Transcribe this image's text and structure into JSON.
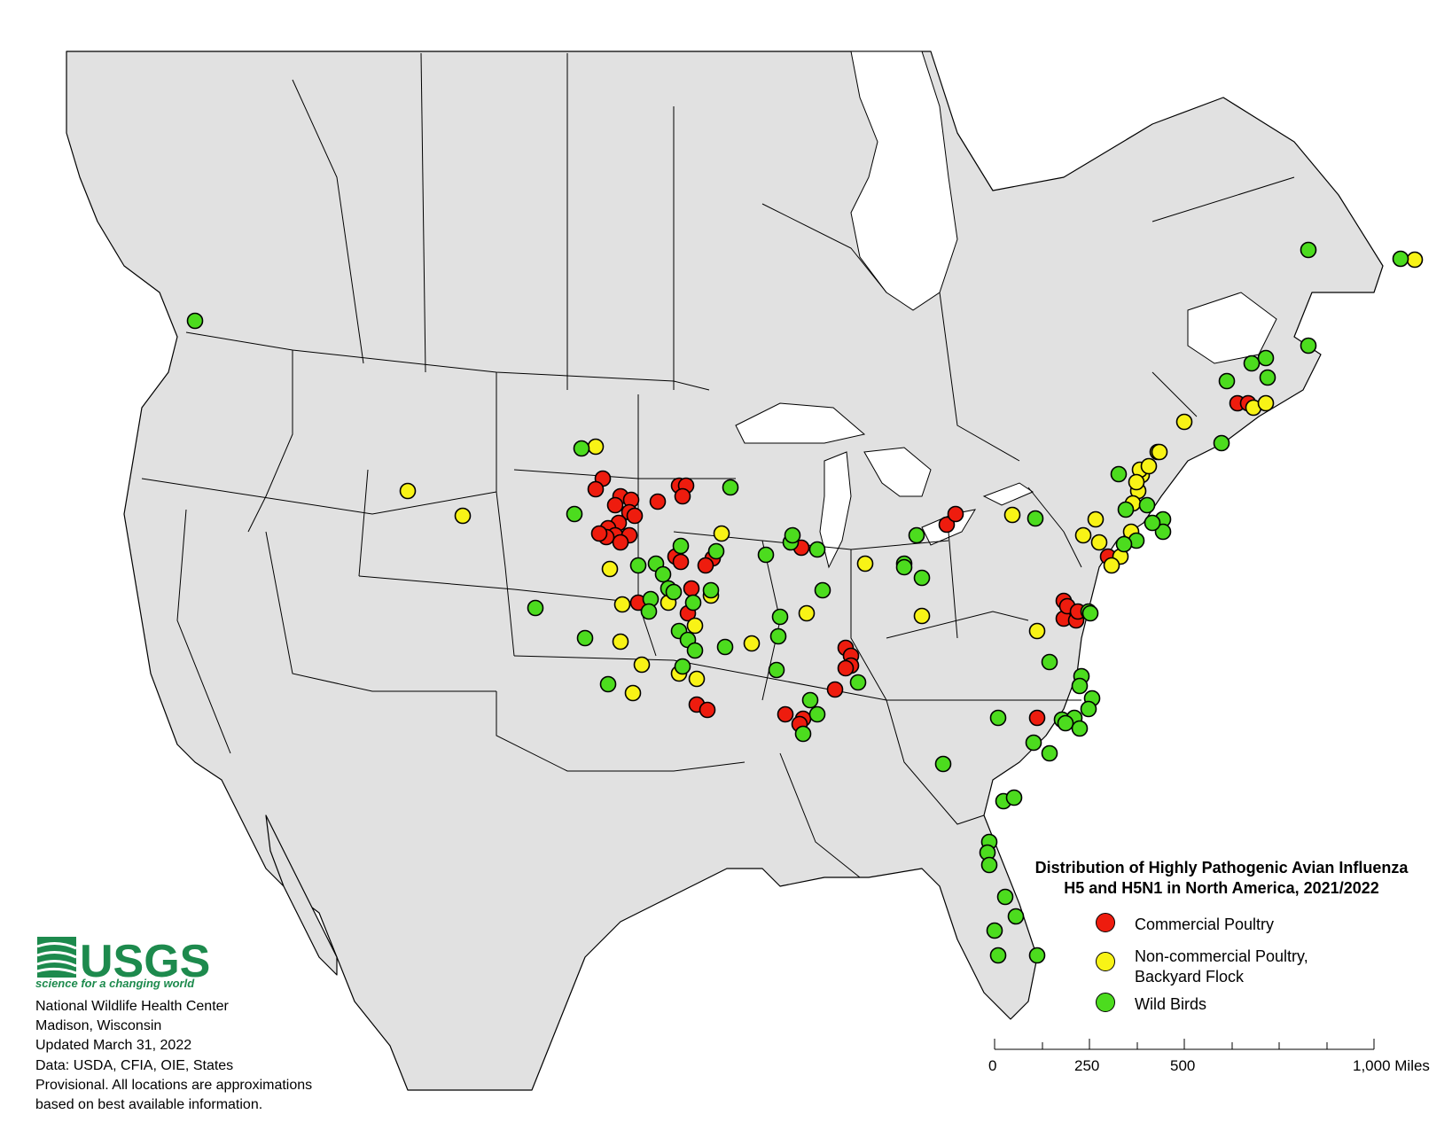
{
  "legend": {
    "title_line1": "Distribution of Highly Pathogenic Avian Influenza",
    "title_line2": "H5 and H5N1 in North America, 2021/2022",
    "items": [
      {
        "label": "Commercial Poultry",
        "color": "#ee1c0e"
      },
      {
        "label": "Non-commercial Poultry,",
        "label2": "Backyard Flock",
        "color": "#f8f316"
      },
      {
        "label": "Wild Birds",
        "color": "#4cdc1e"
      }
    ]
  },
  "logo": {
    "name": "USGS",
    "tagline": "science for a changing world"
  },
  "info": {
    "line1": "National Wildlife Health Center",
    "line2": "Madison, Wisconsin",
    "line3": "Updated March 31, 2022",
    "line4": "Data: USDA, CFIA, OIE, States",
    "line5": "Provisional. All locations are approximations",
    "line6": "based on best available information."
  },
  "scale_bar": {
    "labels": [
      "0",
      "250",
      "500",
      "1,000 Miles"
    ],
    "unit": "Miles",
    "max": 1000
  },
  "colors": {
    "commercial": "#ee1c0e",
    "backyard": "#f8f316",
    "wild": "#4cdc1e",
    "land": "#e1e1e1"
  }
}
